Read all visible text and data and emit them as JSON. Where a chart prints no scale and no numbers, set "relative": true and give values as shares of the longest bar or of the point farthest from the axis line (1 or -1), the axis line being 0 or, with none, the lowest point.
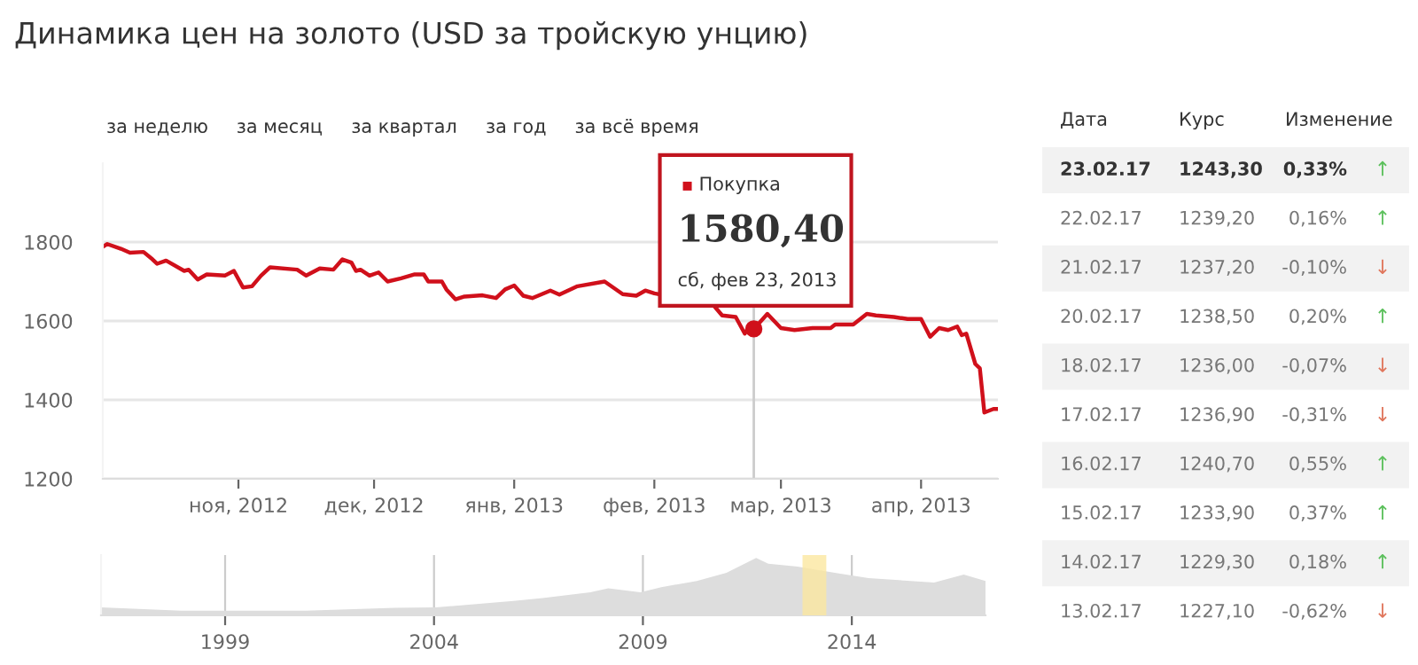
{
  "chart_data": [
    {
      "type": "line",
      "title": "Динамика цен на золото (USD за тройскую унцию)",
      "series": [
        {
          "color": "#d0101b",
          "x": [
            "2012-10-02",
            "2012-10-03",
            "2012-10-06",
            "2012-10-08",
            "2012-10-11",
            "2012-10-13",
            "2012-10-14",
            "2012-10-16",
            "2012-10-20",
            "2012-10-21",
            "2012-10-23",
            "2012-10-25",
            "2012-10-29",
            "2012-10-31",
            "2012-11-02",
            "2012-11-04",
            "2012-11-06",
            "2012-11-08",
            "2012-11-14",
            "2012-11-16",
            "2012-11-19",
            "2012-11-22",
            "2012-11-24",
            "2012-11-26",
            "2012-11-27",
            "2012-11-28",
            "2012-11-30",
            "2012-12-02",
            "2012-12-04",
            "2012-12-07",
            "2012-12-10",
            "2012-12-12",
            "2012-12-13",
            "2012-12-16",
            "2012-12-17",
            "2012-12-19",
            "2012-12-21",
            "2012-12-25",
            "2012-12-28",
            "2012-12-30",
            "2013-01-01",
            "2013-01-03",
            "2013-01-05",
            "2013-01-09",
            "2013-01-11",
            "2013-01-15",
            "2013-01-21",
            "2013-01-25",
            "2013-01-28",
            "2013-01-30",
            "2013-02-01",
            "2013-02-14",
            "2013-02-16",
            "2013-02-19",
            "2013-02-21",
            "2013-02-22",
            "2013-02-23",
            "2013-02-25",
            "2013-02-26",
            "2013-03-01",
            "2013-03-04",
            "2013-03-08",
            "2013-03-12",
            "2013-03-13",
            "2013-03-17",
            "2013-03-20",
            "2013-03-22",
            "2013-03-26",
            "2013-03-29",
            "2013-04-01",
            "2013-04-03",
            "2013-04-05",
            "2013-04-07",
            "2013-04-09",
            "2013-04-10",
            "2013-04-11",
            "2013-04-13",
            "2013-04-14",
            "2013-04-15",
            "2013-04-17",
            "2013-04-18"
          ],
          "type": "line",
          "values": [
            1788,
            1795,
            1783,
            1773,
            1775,
            1756,
            1745,
            1753,
            1727,
            1730,
            1705,
            1718,
            1715,
            1727,
            1685,
            1688,
            1715,
            1736,
            1730,
            1715,
            1733,
            1730,
            1756,
            1748,
            1727,
            1730,
            1715,
            1723,
            1700,
            1708,
            1718,
            1718,
            1700,
            1700,
            1680,
            1655,
            1662,
            1665,
            1658,
            1680,
            1690,
            1664,
            1658,
            1677,
            1667,
            1688,
            1700,
            1668,
            1664,
            1677,
            1670,
            1641,
            1614,
            1610,
            1568,
            1586,
            1580,
            1605,
            1618,
            1582,
            1577,
            1582,
            1582,
            1591,
            1591,
            1618,
            1614,
            1610,
            1605,
            1605,
            1560,
            1582,
            1577,
            1586,
            1564,
            1568,
            1491,
            1480,
            1368,
            1377,
            1377
          ]
        },
        {
          "type": "scatter",
          "marker": "circle",
          "color": "#d0101b",
          "x": [
            "2013-02-23"
          ],
          "values": [
            1580
          ]
        }
      ],
      "xlim": [
        "2012-10-02",
        "2013-04-18"
      ],
      "xticks": [
        {
          "value": "2012-11-01",
          "label": "ноя, 2012"
        },
        {
          "value": "2012-12-01",
          "label": "дек, 2012"
        },
        {
          "value": "2013-01-01",
          "label": "янв, 2013"
        },
        {
          "value": "2013-02-01",
          "label": "фев, 2013"
        },
        {
          "value": "2013-03-01",
          "label": "мар, 2013"
        },
        {
          "value": "2013-04-01",
          "label": "апр, 2013"
        }
      ],
      "ylim": [
        1200,
        2000
      ],
      "yticks": [
        1200,
        1400,
        1600,
        1800
      ],
      "grid": "y",
      "marker": "none",
      "line_style": "solid",
      "ref_lines": [
        {
          "axis": "x",
          "value": "2013-02-23",
          "color": "#cccccc"
        }
      ],
      "annotations": [
        "за неделю",
        "за месяц",
        "за квартал",
        "за год",
        "за всё время",
        "Покупка",
        "1580,40",
        "сб, фев 23, 2013"
      ]
    },
    {
      "type": "area",
      "relative": true,
      "series": [
        {
          "color": "#dddddd",
          "x": [
            1996.03,
            1997.95,
            2000.93,
            2003.06,
            2004.05,
            2005.9,
            2006.6,
            2007.74,
            2008.17,
            2008.94,
            2009.44,
            2010.29,
            2011.0,
            2011.71,
            2012.0,
            2012.7,
            2013.69,
            2014.4,
            2015.97,
            2016.68,
            2017.2
          ],
          "values": [
            0.14,
            0.08,
            0.08,
            0.13,
            0.14,
            0.25,
            0.3,
            0.4,
            0.47,
            0.4,
            0.49,
            0.6,
            0.74,
            1,
            0.9,
            0.85,
            0.73,
            0.65,
            0.57,
            0.71,
            0.6
          ]
        }
      ],
      "xlim": [
        1996.03,
        2017.2
      ],
      "xticks": [
        1999,
        2004,
        2009,
        2014
      ],
      "grid": "x",
      "bands": [
        {
          "axis": "x",
          "from": 2012.82,
          "to": 2013.39,
          "color": "#fbe7a0"
        }
      ]
    },
    {
      "type": "other",
      "categories": [
        "Дата",
        "Курс",
        "Изменение"
      ],
      "cell_labels": [
        [
          "23.02.17",
          "1243,30",
          "0,33%",
          "↑"
        ],
        [
          "22.02.17",
          "1239,20",
          "0,16%",
          "↑"
        ],
        [
          "21.02.17",
          "1237,20",
          "-0,10%",
          "↓"
        ],
        [
          "20.02.17",
          "1238,50",
          "0,20%",
          "↑"
        ],
        [
          "18.02.17",
          "1236,00",
          "-0,07%",
          "↓"
        ],
        [
          "17.02.17",
          "1236,90",
          "-0,31%",
          "↓"
        ],
        [
          "16.02.17",
          "1240,70",
          "0,55%",
          "↑"
        ],
        [
          "15.02.17",
          "1233,90",
          "0,37%",
          "↑"
        ],
        [
          "14.02.17",
          "1229,30",
          "0,18%",
          "↑"
        ],
        [
          "13.02.17",
          "1227,10",
          "-0,62%",
          "↓"
        ]
      ],
      "colors": [
        "#5cc05c",
        "#5cc05c",
        "#e0765c",
        "#5cc05c",
        "#e0765c",
        "#e0765c",
        "#5cc05c",
        "#5cc05c",
        "#5cc05c",
        "#e0765c"
      ]
    }
  ]
}
